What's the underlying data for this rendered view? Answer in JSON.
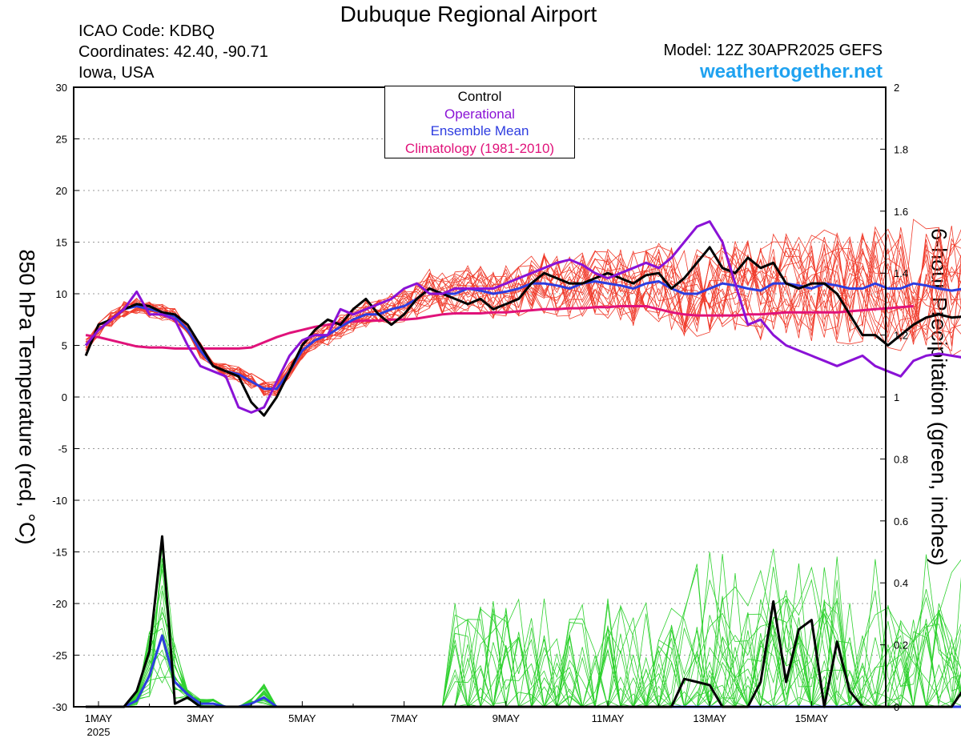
{
  "header": {
    "title": "Dubuque Regional Airport",
    "icao": "ICAO Code: KDBQ",
    "coords": "Coordinates: 42.40, -90.71",
    "location": "Iowa, USA",
    "model": "Model: 12Z 30APR2025 GEFS",
    "site": "weathertogether.net"
  },
  "chart_data": {
    "type": "line",
    "ylabel_left": "850 hPa Temperature (red, °C)",
    "ylabel_right": "6-hour Precipitation (green, inches)",
    "ylim_left": [
      -30,
      30
    ],
    "ylim_right": [
      0,
      2
    ],
    "yticks_left": [
      "30",
      "25",
      "20",
      "15",
      "10",
      "5",
      "0",
      "-5",
      "-10",
      "-15",
      "-20",
      "-25",
      "-30"
    ],
    "yticks_right": [
      "2",
      "1.8",
      "1.6",
      "1.4",
      "1.2",
      "1",
      "0.8",
      "0.6",
      "0.4",
      "0.2",
      "0"
    ],
    "xlim_days": [
      0,
      16.25
    ],
    "xticks": [
      {
        "day": 0,
        "label": "1MAY"
      },
      {
        "day": 2,
        "label": "3MAY"
      },
      {
        "day": 4,
        "label": "5MAY"
      },
      {
        "day": 6,
        "label": "7MAY"
      },
      {
        "day": 8,
        "label": "9MAY"
      },
      {
        "day": 10,
        "label": "11MAY"
      },
      {
        "day": 12,
        "label": "13MAY"
      },
      {
        "day": 14,
        "label": "15MAY"
      }
    ],
    "xyear": "2025",
    "legend": [
      {
        "label": "Control",
        "color": "#000000"
      },
      {
        "label": "Operational",
        "color": "#8a12d6"
      },
      {
        "label": "Ensemble Mean",
        "color": "#2d3ce0"
      },
      {
        "label": "Climatology (1981-2010)",
        "color": "#e0127a"
      }
    ],
    "colors": {
      "members_temp": "#f03a2a",
      "members_precip": "#2ed12e",
      "control": "#000000",
      "operational": "#8a12d6",
      "mean": "#2d3ce0",
      "climatology": "#e0127a",
      "grid": "#9a9a9a"
    },
    "time_step_days": 0.25,
    "time_start_days": -0.25,
    "temperature": {
      "climatology": [
        6.0,
        5.8,
        5.5,
        5.2,
        4.9,
        4.8,
        4.8,
        4.7,
        4.7,
        4.7,
        4.7,
        4.7,
        4.7,
        4.8,
        5.3,
        5.8,
        6.2,
        6.5,
        6.8,
        7.0,
        7.2,
        7.3,
        7.4,
        7.4,
        7.5,
        7.5,
        7.6,
        7.8,
        8.0,
        8.1,
        8.1,
        8.1,
        8.2,
        8.2,
        8.3,
        8.4,
        8.5,
        8.5,
        8.6,
        8.6,
        8.7,
        8.7,
        8.8,
        8.8,
        8.8,
        8.5,
        8.2,
        8.0,
        7.9,
        7.9,
        7.9,
        7.9,
        8.0,
        8.0,
        8.1,
        8.2,
        8.2,
        8.2,
        8.2,
        8.2,
        8.3,
        8.4,
        8.5,
        8.6,
        8.7,
        8.8
      ],
      "control": [
        4.0,
        7.0,
        7.5,
        8.5,
        9.0,
        8.8,
        8.2,
        8.0,
        7.0,
        5.0,
        3.0,
        2.5,
        2.0,
        -0.5,
        -1.8,
        0.0,
        2.5,
        5.0,
        6.5,
        7.5,
        7.0,
        8.5,
        9.5,
        8.0,
        7.0,
        8.0,
        9.5,
        10.5,
        10.0,
        9.5,
        9.0,
        9.5,
        8.5,
        9.0,
        9.5,
        11.0,
        12.0,
        11.5,
        11.0,
        11.0,
        11.5,
        12.0,
        11.5,
        11.0,
        11.8,
        12.0,
        10.5,
        11.5,
        13.0,
        14.5,
        12.5,
        12.0,
        13.5,
        12.5,
        13.0,
        11.0,
        10.5,
        11.0,
        11.0,
        10.0,
        8.0,
        6.0,
        6.0,
        5.0,
        6.0,
        7.0,
        7.7,
        8.0,
        7.7,
        7.8,
        8.0,
        7.7,
        7.6
      ],
      "operational": [
        5.0,
        6.5,
        7.5,
        8.5,
        10.2,
        8.0,
        8.0,
        7.5,
        5.0,
        3.0,
        2.5,
        2.0,
        -1.0,
        -1.5,
        -1.0,
        1.5,
        4.0,
        5.5,
        6.0,
        6.0,
        8.5,
        8.0,
        8.5,
        9.0,
        9.5,
        10.5,
        11.0,
        10.0,
        10.0,
        10.5,
        10.5,
        10.5,
        10.5,
        11.0,
        11.5,
        12.0,
        12.5,
        13.0,
        13.3,
        12.8,
        12.0,
        11.5,
        12.0,
        12.5,
        13.0,
        12.5,
        13.5,
        15.0,
        16.5,
        17.0,
        15.0,
        11.0,
        7.0,
        7.5,
        6.0,
        5.0,
        4.5,
        4.0,
        3.5,
        3.0,
        3.5,
        4.0,
        3.0,
        2.5,
        2.0,
        3.5,
        4.0,
        4.2,
        4.0,
        3.8,
        4.5,
        5.0,
        5.5,
        5.6,
        5.8
      ],
      "mean": [
        5.0,
        6.5,
        7.5,
        8.5,
        8.8,
        8.5,
        8.2,
        7.8,
        6.5,
        4.5,
        3.0,
        2.5,
        2.2,
        1.5,
        0.8,
        0.8,
        2.5,
        4.5,
        5.5,
        6.0,
        6.8,
        7.5,
        8.0,
        8.0,
        8.5,
        8.8,
        9.5,
        10.5,
        10.0,
        10.0,
        10.5,
        10.3,
        10.0,
        10.2,
        10.5,
        11.0,
        11.0,
        10.8,
        10.5,
        11.0,
        11.2,
        11.0,
        10.8,
        10.5,
        11.0,
        11.2,
        10.5,
        10.0,
        10.0,
        10.5,
        11.0,
        10.8,
        10.5,
        10.3,
        11.0,
        11.0,
        10.8,
        10.5,
        11.0,
        10.8,
        10.5,
        10.5,
        11.0,
        10.5,
        10.5,
        11.0,
        10.8,
        10.5,
        10.3,
        10.5,
        11.0,
        11.5,
        11.8,
        12.0,
        11.5,
        11.8,
        12.0,
        11.8,
        10.8
      ]
    },
    "precipitation": {
      "control": [
        0.0,
        0.0,
        0.0,
        0.0,
        0.05,
        0.18,
        0.55,
        0.01,
        0.03,
        0.0,
        0.0,
        0.0,
        0.0,
        0.0,
        0.0,
        0.0,
        0.0,
        0.0,
        0.0,
        0.0,
        0.0,
        0.0,
        0.0,
        0.0,
        0.0,
        0.0,
        0.0,
        0.0,
        0.0,
        0.0,
        0.0,
        0.0,
        0.0,
        0.0,
        0.0,
        0.0,
        0.0,
        0.0,
        0.0,
        0.0,
        0.0,
        0.0,
        0.0,
        0.0,
        0.0,
        0.0,
        0.0,
        0.09,
        0.08,
        0.07,
        0.0,
        0.0,
        0.0,
        0.08,
        0.34,
        0.08,
        0.25,
        0.28,
        0.0,
        0.21,
        0.05,
        0.0,
        0.0,
        0.0,
        0.0,
        0.0,
        0.0,
        0.0,
        0.0,
        0.06,
        0.19,
        0.34,
        0.03,
        0.0,
        0.0,
        0.0,
        0.0,
        0.0,
        0.0,
        0.0,
        0.0,
        0.0,
        0.0,
        0.0,
        0.0,
        0.0,
        0.0
      ],
      "mean": [
        0.0,
        0.0,
        0.0,
        0.0,
        0.02,
        0.1,
        0.23,
        0.08,
        0.04,
        0.01,
        0.01,
        0.0,
        0.0,
        0.01,
        0.03,
        0.0,
        0.0,
        0.0,
        0.0,
        0.0,
        0.0,
        0.0,
        0.0,
        0.0,
        0.0,
        0.0,
        0.0,
        0.0,
        0.0,
        0.0,
        0.0,
        0.0,
        0.0,
        0.0,
        0.0,
        0.0,
        0.0,
        0.0,
        0.0,
        0.0,
        0.0,
        0.0,
        0.0,
        0.0,
        0.0,
        0.0,
        0.0,
        0.0,
        0.0,
        0.0,
        0.0,
        0.0,
        0.0,
        0.0,
        0.0,
        0.0,
        0.0,
        0.0,
        0.0,
        0.0,
        0.0,
        0.0,
        0.0,
        0.0,
        0.0,
        0.0,
        0.0,
        0.0,
        0.0,
        0.0,
        0.0,
        0.0,
        0.0,
        0.0,
        0.0,
        0.0,
        0.0,
        0.0,
        0.0,
        0.0,
        0.0
      ]
    }
  }
}
